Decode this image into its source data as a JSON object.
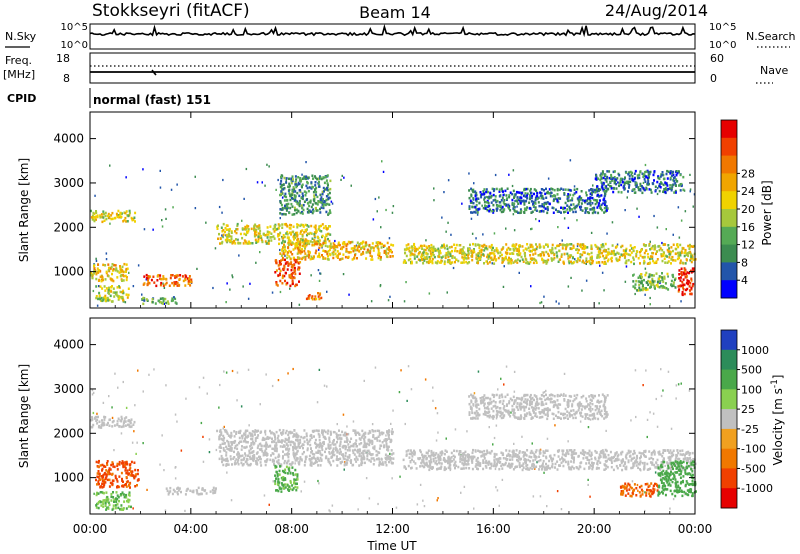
{
  "header": {
    "station": "Stokkseyri (fitACF)",
    "beam": "Beam 14",
    "date": "24/Aug/2014"
  },
  "top_panels": {
    "nsky": {
      "label": "N.Sky",
      "left_ticks": [
        "10^5",
        "10^0"
      ],
      "right_ticks": [
        "10^5",
        "10^0"
      ],
      "legend": "N.Search"
    },
    "freq": {
      "label_line1": "Freq.",
      "label_line2": "[MHz]",
      "left_ticks": [
        "18",
        "8"
      ],
      "right_ticks": [
        "60",
        "0"
      ],
      "legend": "Nave"
    },
    "cpid": {
      "label": "CPID",
      "text": "normal (fast) 151"
    }
  },
  "power_panel": {
    "ylabel": "Slant Range [km]",
    "yticks": [
      "1000",
      "2000",
      "3000",
      "4000"
    ],
    "colorbar_label": "Power [dB]",
    "colorbar_ticks": [
      "4",
      "8",
      "12",
      "16",
      "20",
      "24",
      "28"
    ],
    "colors": [
      "#0000ff",
      "#2255aa",
      "#3c8c50",
      "#55aa55",
      "#a6c83c",
      "#f0d200",
      "#f0a500",
      "#f07800",
      "#f04000",
      "#e60000"
    ]
  },
  "velocity_panel": {
    "ylabel": "Slant Range [km]",
    "yticks": [
      "1000",
      "2000",
      "3000",
      "4000"
    ],
    "colorbar_label": "Velocity [m s",
    "colorbar_sup": "-1",
    "colorbar_suffix": "]",
    "colorbar_ticks": [
      "1000",
      "500",
      "100",
      "25",
      "-25",
      "-100",
      "-500",
      "-1000"
    ],
    "colors": [
      "#2040c0",
      "#2c8c5a",
      "#4aa84a",
      "#8ad050",
      "#c0c0c0",
      "#f0a020",
      "#f07800",
      "#f04000",
      "#e60000"
    ]
  },
  "time_axis": {
    "ticks": [
      "00:00",
      "04:00",
      "08:00",
      "12:00",
      "16:00",
      "20:00",
      "00:00"
    ],
    "label": "Time UT"
  },
  "chart_data": [
    {
      "type": "heatmap",
      "title": "Stokkseyri (fitACF)  Beam 14  24/Aug/2014",
      "variable": "Power [dB]",
      "xlabel": "Time UT",
      "ylabel": "Slant Range [km]",
      "xlim": [
        "00:00",
        "24:00"
      ],
      "ylim": [
        180,
        4600
      ],
      "color_range": [
        0,
        30
      ],
      "features": [
        {
          "t0": 0.0,
          "t1": 1.8,
          "r0": 2150,
          "r1": 2400,
          "value": 16
        },
        {
          "t0": 0.0,
          "t1": 1.5,
          "r0": 800,
          "r1": 1200,
          "value": 18
        },
        {
          "t0": 0.2,
          "t1": 1.5,
          "r0": 350,
          "r1": 700,
          "value": 14
        },
        {
          "t0": 2.0,
          "t1": 4.0,
          "r0": 700,
          "r1": 950,
          "value": 24
        },
        {
          "t0": 2.0,
          "t1": 3.5,
          "r0": 300,
          "r1": 450,
          "value": 10
        },
        {
          "t0": 5.0,
          "t1": 9.5,
          "r0": 1650,
          "r1": 2100,
          "value": 16
        },
        {
          "t0": 7.5,
          "t1": 12.0,
          "r0": 1300,
          "r1": 1700,
          "value": 18
        },
        {
          "t0": 7.3,
          "t1": 8.3,
          "r0": 700,
          "r1": 1300,
          "value": 25
        },
        {
          "t0": 7.5,
          "t1": 9.5,
          "r0": 2300,
          "r1": 3200,
          "value": 8
        },
        {
          "t0": 8.5,
          "t1": 9.2,
          "r0": 400,
          "r1": 550,
          "value": 22
        },
        {
          "t0": 12.4,
          "t1": 24.0,
          "r0": 1200,
          "r1": 1650,
          "value": 16
        },
        {
          "t0": 15.0,
          "t1": 20.5,
          "r0": 2350,
          "r1": 2900,
          "value": 6
        },
        {
          "t0": 20.0,
          "t1": 23.5,
          "r0": 2800,
          "r1": 3300,
          "value": 6
        },
        {
          "t0": 21.5,
          "t1": 23.2,
          "r0": 600,
          "r1": 1000,
          "value": 12
        },
        {
          "t0": 23.3,
          "t1": 24.0,
          "r0": 500,
          "r1": 1100,
          "value": 28
        }
      ]
    },
    {
      "type": "heatmap",
      "variable": "Velocity [m s-1]",
      "xlabel": "Time UT",
      "ylabel": "Slant Range [km]",
      "xlim": [
        "00:00",
        "24:00"
      ],
      "ylim": [
        180,
        4600
      ],
      "color_levels": [
        1000,
        500,
        100,
        25,
        -25,
        -100,
        -500,
        -1000
      ],
      "features": [
        {
          "t0": 0.0,
          "t1": 1.8,
          "r0": 2150,
          "r1": 2400,
          "value": 0
        },
        {
          "t0": 0.2,
          "t1": 1.9,
          "r0": 800,
          "r1": 1400,
          "value": -400
        },
        {
          "t0": 0.2,
          "t1": 1.6,
          "r0": 300,
          "r1": 700,
          "value": 60
        },
        {
          "t0": 3.0,
          "t1": 5.0,
          "r0": 650,
          "r1": 800,
          "value": 0
        },
        {
          "t0": 5.0,
          "t1": 12.0,
          "r0": 1300,
          "r1": 2100,
          "value": 0
        },
        {
          "t0": 7.3,
          "t1": 8.2,
          "r0": 700,
          "r1": 1300,
          "value": 80
        },
        {
          "t0": 12.4,
          "t1": 24.0,
          "r0": 1200,
          "r1": 1650,
          "value": 0
        },
        {
          "t0": 15.0,
          "t1": 20.5,
          "r0": 2350,
          "r1": 2900,
          "value": 0
        },
        {
          "t0": 21.0,
          "t1": 22.5,
          "r0": 600,
          "r1": 900,
          "value": -300
        },
        {
          "t0": 22.5,
          "t1": 24.0,
          "r0": 600,
          "r1": 1400,
          "value": 150
        }
      ]
    }
  ]
}
